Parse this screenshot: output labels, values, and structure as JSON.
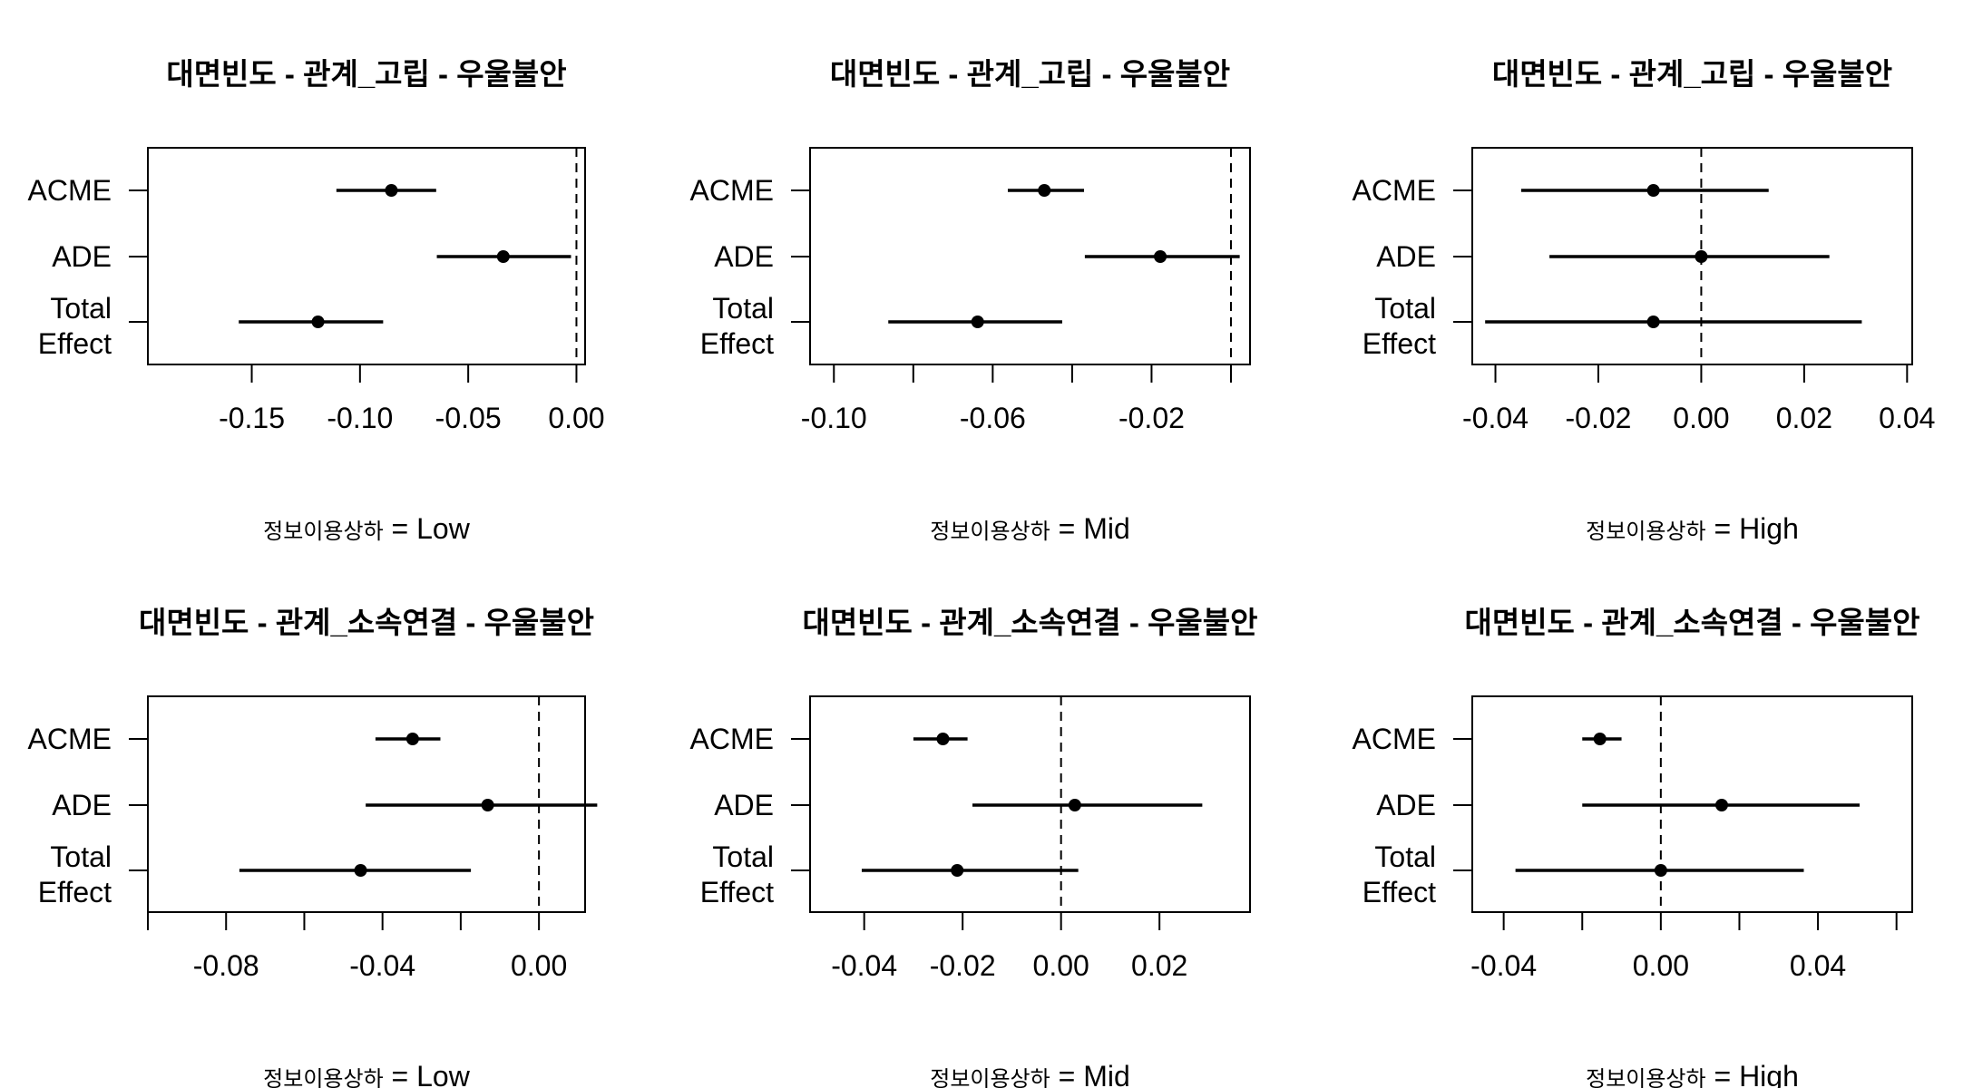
{
  "chart_data": [
    {
      "type": "forest",
      "title": "대면빈도 - 관계_고립 - 우울불안",
      "categories": [
        "ACME",
        "ADE",
        "Total\nEffect"
      ],
      "estimates": [
        -0.0855,
        -0.0338,
        -0.1194
      ],
      "ci_lower": [
        -0.1109,
        -0.0645,
        -0.156
      ],
      "ci_upper": [
        -0.0648,
        -0.0025,
        -0.0893
      ],
      "xlim": [
        -0.198,
        0.004
      ],
      "xticks": [
        -0.15,
        -0.1,
        -0.05,
        0.0
      ],
      "xtick_labels": [
        "-0.15",
        "-0.10",
        "-0.05",
        "0.00"
      ],
      "xaxis_extra_ticks": [
        -0.2
      ],
      "reference_line": 0,
      "moderator_label": "정보이용상하",
      "moderator_value": "= Low"
    },
    {
      "type": "forest",
      "title": "대면빈도 - 관계_고립 - 우울불안",
      "categories": [
        "ACME",
        "ADE",
        "Total\nEffect"
      ],
      "estimates": [
        -0.047,
        -0.0178,
        -0.0638
      ],
      "ci_lower": [
        -0.0562,
        -0.0368,
        -0.0863
      ],
      "ci_upper": [
        -0.037,
        0.0022,
        -0.0425
      ],
      "xlim": [
        -0.106,
        0.0048
      ],
      "xticks": [
        -0.1,
        -0.06,
        -0.02
      ],
      "xtick_labels": [
        "-0.10",
        "-0.06",
        "-0.02"
      ],
      "xaxis_extra_ticks": [
        -0.08,
        -0.04,
        0.0
      ],
      "reference_line": 0,
      "moderator_label": "정보이용상하",
      "moderator_value": "= Mid"
    },
    {
      "type": "forest",
      "title": "대면빈도 - 관계_고립 - 우울불안",
      "categories": [
        "ACME",
        "ADE",
        "Total\nEffect"
      ],
      "estimates": [
        -0.0093,
        0.0,
        -0.0093
      ],
      "ci_lower": [
        -0.035,
        -0.0295,
        -0.042
      ],
      "ci_upper": [
        0.0131,
        0.0249,
        0.0312
      ],
      "xlim": [
        -0.0445,
        0.041
      ],
      "xticks": [
        -0.04,
        -0.02,
        0.0,
        0.02,
        0.04
      ],
      "xtick_labels": [
        "-0.04",
        "-0.02",
        "0.00",
        "0.02",
        "0.04"
      ],
      "xaxis_extra_ticks": [],
      "reference_line": 0,
      "moderator_label": "정보이용상하",
      "moderator_value": "= High"
    },
    {
      "type": "forest",
      "title": "대면빈도 - 관계_소속연결 - 우울불안",
      "categories": [
        "ACME",
        "ADE",
        "Total\nEffect"
      ],
      "estimates": [
        -0.0323,
        -0.0131,
        -0.0456
      ],
      "ci_lower": [
        -0.0418,
        -0.0443,
        -0.0766
      ],
      "ci_upper": [
        -0.0252,
        0.0149,
        -0.0174
      ],
      "xlim": [
        -0.1,
        0.0118
      ],
      "xticks": [
        -0.08,
        -0.04,
        0.0
      ],
      "xtick_labels": [
        "-0.08",
        "-0.04",
        "0.00"
      ],
      "xaxis_extra_ticks": [
        -0.1,
        -0.06,
        -0.02
      ],
      "reference_line": 0,
      "moderator_label": "정보이용상하",
      "moderator_value": "= Low"
    },
    {
      "type": "forest",
      "title": "대면빈도 - 관계_소속연결 - 우울불안",
      "categories": [
        "ACME",
        "ADE",
        "Total\nEffect"
      ],
      "estimates": [
        -0.024,
        0.0028,
        -0.0211
      ],
      "ci_lower": [
        -0.03,
        -0.018,
        -0.0405
      ],
      "ci_upper": [
        -0.019,
        0.0287,
        0.0035
      ],
      "xlim": [
        -0.051,
        0.0384
      ],
      "xticks": [
        -0.04,
        -0.02,
        0.0,
        0.02
      ],
      "xtick_labels": [
        "-0.04",
        "-0.02",
        "0.00",
        "0.02"
      ],
      "xaxis_extra_ticks": [],
      "reference_line": 0,
      "moderator_label": "정보이용상하",
      "moderator_value": "= Mid"
    },
    {
      "type": "forest",
      "title": "대면빈도 - 관계_소속연결 - 우울불안",
      "categories": [
        "ACME",
        "ADE",
        "Total\nEffect"
      ],
      "estimates": [
        -0.0155,
        0.0155,
        0.0
      ],
      "ci_lower": [
        -0.02,
        -0.02,
        -0.037
      ],
      "ci_upper": [
        -0.01,
        0.0506,
        0.0364
      ],
      "xlim": [
        -0.048,
        0.064
      ],
      "xticks": [
        -0.04,
        0.0,
        0.04
      ],
      "xtick_labels": [
        "-0.04",
        "0.00",
        "0.04"
      ],
      "xaxis_extra_ticks": [
        -0.02,
        0.02,
        0.06
      ],
      "reference_line": 0,
      "moderator_label": "정보이용상하",
      "moderator_value": "= High"
    }
  ]
}
